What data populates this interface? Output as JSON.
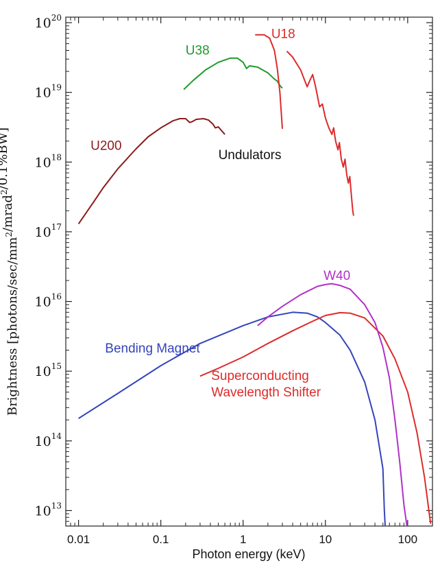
{
  "chart_data": {
    "type": "line",
    "xlabel": "Photon energy (keV)",
    "ylabel": "Brightness [photons/sec/mm²/mrad²/0.1%BW]",
    "xscale": "log",
    "yscale": "log",
    "xlim": [
      0.007,
      200
    ],
    "ylim": [
      6000000000000.0,
      1.2e+20
    ],
    "xticks": [
      {
        "value": 0.01,
        "label": "0.01"
      },
      {
        "value": 0.1,
        "label": "0.1"
      },
      {
        "value": 1,
        "label": "1"
      },
      {
        "value": 10,
        "label": "10"
      },
      {
        "value": 100,
        "label": "100"
      }
    ],
    "yticks": [
      {
        "value": 10000000000000.0,
        "base": "10",
        "exp": "13"
      },
      {
        "value": 100000000000000.0,
        "base": "10",
        "exp": "14"
      },
      {
        "value": 1000000000000000.0,
        "base": "10",
        "exp": "15"
      },
      {
        "value": 1e+16,
        "base": "10",
        "exp": "16"
      },
      {
        "value": 1e+17,
        "base": "10",
        "exp": "17"
      },
      {
        "value": 1e+18,
        "base": "10",
        "exp": "18"
      },
      {
        "value": 1e+19,
        "base": "10",
        "exp": "19"
      },
      {
        "value": 1e+20,
        "base": "10",
        "exp": "20"
      }
    ],
    "grid": false,
    "annotations": [
      {
        "text": "Undulators",
        "x": 0.5,
        "y": 1.1e+18,
        "color": "#111111"
      }
    ],
    "series": [
      {
        "name": "U200",
        "color": "#8b1a1a",
        "label_at": {
          "x": 0.014,
          "y": 1.5e+18
        },
        "points": [
          [
            0.01,
            1.3e+17
          ],
          [
            0.015,
            2.6e+17
          ],
          [
            0.02,
            4.3e+17
          ],
          [
            0.03,
            8e+17
          ],
          [
            0.05,
            1.55e+18
          ],
          [
            0.07,
            2.3e+18
          ],
          [
            0.1,
            3.1e+18
          ],
          [
            0.14,
            3.9e+18
          ],
          [
            0.17,
            4.2e+18
          ],
          [
            0.2,
            4.2e+18
          ],
          [
            0.225,
            3.7e+18
          ],
          [
            0.24,
            3.8e+18
          ],
          [
            0.27,
            4.1e+18
          ],
          [
            0.33,
            4.2e+18
          ],
          [
            0.38,
            4e+18
          ],
          [
            0.43,
            3.5e+18
          ],
          [
            0.46,
            3.1e+18
          ],
          [
            0.5,
            3.2e+18
          ],
          [
            0.55,
            2.8e+18
          ],
          [
            0.6,
            2.5e+18
          ]
        ]
      },
      {
        "name": "U38",
        "color": "#1f9a2a",
        "label_at": {
          "x": 0.2,
          "y": 3.5e+19
        },
        "points": [
          [
            0.19,
            1.1e+19
          ],
          [
            0.25,
            1.5e+19
          ],
          [
            0.35,
            2.1e+19
          ],
          [
            0.5,
            2.7e+19
          ],
          [
            0.7,
            3.1e+19
          ],
          [
            0.85,
            3.1e+19
          ],
          [
            1.0,
            2.7e+19
          ],
          [
            1.1,
            2.2e+19
          ],
          [
            1.2,
            2.4e+19
          ],
          [
            1.5,
            2.3e+19
          ],
          [
            2.0,
            1.9e+19
          ],
          [
            2.4,
            1.55e+19
          ],
          [
            2.6,
            1.45e+19
          ],
          [
            2.8,
            1.25e+19
          ],
          [
            3.0,
            1.15e+19
          ]
        ]
      },
      {
        "name": "U18",
        "color": "#dd2a2a",
        "label_at": {
          "x": 2.2,
          "y": 6e+19
        },
        "segments": [
          [
            [
              1.4,
              6.7e+19
            ],
            [
              1.8,
              6.7e+19
            ],
            [
              2.1,
              6e+19
            ],
            [
              2.4,
              4e+19
            ],
            [
              2.6,
              2.2e+19
            ],
            [
              2.8,
              1e+19
            ],
            [
              3.0,
              3e+18
            ]
          ],
          [
            [
              3.4,
              3.9e+19
            ],
            [
              4.0,
              3.2e+19
            ],
            [
              5.0,
              2.1e+19
            ],
            [
              6.0,
              1.2e+19
            ],
            [
              6.5,
              1.5e+19
            ],
            [
              7.0,
              1.8e+19
            ],
            [
              7.6,
              1.2e+19
            ],
            [
              8.5,
              6.2e+18
            ],
            [
              9.2,
              6.8e+18
            ],
            [
              10.0,
              4.3e+18
            ],
            [
              11.0,
              3.1e+18
            ],
            [
              12.0,
              2.5e+18
            ],
            [
              12.6,
              3.1e+18
            ],
            [
              13.3,
              2e+18
            ],
            [
              14.2,
              1.5e+18
            ],
            [
              14.8,
              1.9e+18
            ],
            [
              15.6,
              1.1e+18
            ],
            [
              16.5,
              8.5e+17
            ],
            [
              17.3,
              1.1e+18
            ],
            [
              18.2,
              6.5e+17
            ],
            [
              19.0,
              5e+17
            ],
            [
              19.8,
              6.2e+17
            ],
            [
              20.6,
              3.5e+17
            ],
            [
              21.5,
              2e+17
            ],
            [
              22.0,
              1.7e+17
            ]
          ]
        ]
      },
      {
        "name": "Bending Magnet",
        "color": "#3344bb",
        "label_at": {
          "x": 0.021,
          "y": 1850000000000000.0
        },
        "points": [
          [
            0.01,
            210000000000000.0
          ],
          [
            0.03,
            480000000000000.0
          ],
          [
            0.1,
            1200000000000000.0
          ],
          [
            0.3,
            2500000000000000.0
          ],
          [
            1,
            4500000000000000.0
          ],
          [
            2,
            6000000000000000.0
          ],
          [
            4,
            7000000000000000.0
          ],
          [
            6,
            6800000000000000.0
          ],
          [
            8,
            6000000000000000.0
          ],
          [
            10,
            5000000000000000.0
          ],
          [
            15,
            3300000000000000.0
          ],
          [
            20,
            2000000000000000.0
          ],
          [
            30,
            700000000000000.0
          ],
          [
            40,
            200000000000000.0
          ],
          [
            50,
            40000000000000.0
          ],
          [
            52,
            10000000000000.0
          ],
          [
            54,
            4500000000000.0
          ]
        ]
      },
      {
        "name": "Superconducting Wavelength Shifter",
        "label_lines": [
          "Superconducting",
          "Wavelength Shifter"
        ],
        "color": "#dd2a2a",
        "label_at": {
          "x": 0.41,
          "y": 750000000000000.0
        },
        "points": [
          [
            0.3,
            850000000000000.0
          ],
          [
            0.5,
            1100000000000000.0
          ],
          [
            1,
            1600000000000000.0
          ],
          [
            2,
            2500000000000000.0
          ],
          [
            4,
            3800000000000000.0
          ],
          [
            7,
            5200000000000000.0
          ],
          [
            10,
            6300000000000000.0
          ],
          [
            15,
            6900000000000000.0
          ],
          [
            20,
            6800000000000000.0
          ],
          [
            30,
            5800000000000000.0
          ],
          [
            50,
            3200000000000000.0
          ],
          [
            70,
            1500000000000000.0
          ],
          [
            100,
            500000000000000.0
          ],
          [
            130,
            130000000000000.0
          ],
          [
            160,
            30000000000000.0
          ],
          [
            190,
            6500000000000.0
          ]
        ]
      },
      {
        "name": "W40",
        "color": "#b030c8",
        "label_at": {
          "x": 9.5,
          "y": 2.05e+16
        },
        "points": [
          [
            1.5,
            4500000000000000.0
          ],
          [
            2,
            6000000000000000.0
          ],
          [
            3,
            8500000000000000.0
          ],
          [
            5,
            1.25e+16
          ],
          [
            8,
            1.65e+16
          ],
          [
            10,
            1.75e+16
          ],
          [
            12,
            1.8e+16
          ],
          [
            15,
            1.7e+16
          ],
          [
            20,
            1.5e+16
          ],
          [
            30,
            9000000000000000.0
          ],
          [
            40,
            5000000000000000.0
          ],
          [
            50,
            2200000000000000.0
          ],
          [
            60,
            800000000000000.0
          ],
          [
            70,
            200000000000000.0
          ],
          [
            80,
            50000000000000.0
          ],
          [
            90,
            12000000000000.0
          ],
          [
            100,
            5000000000000.0
          ]
        ]
      }
    ]
  }
}
